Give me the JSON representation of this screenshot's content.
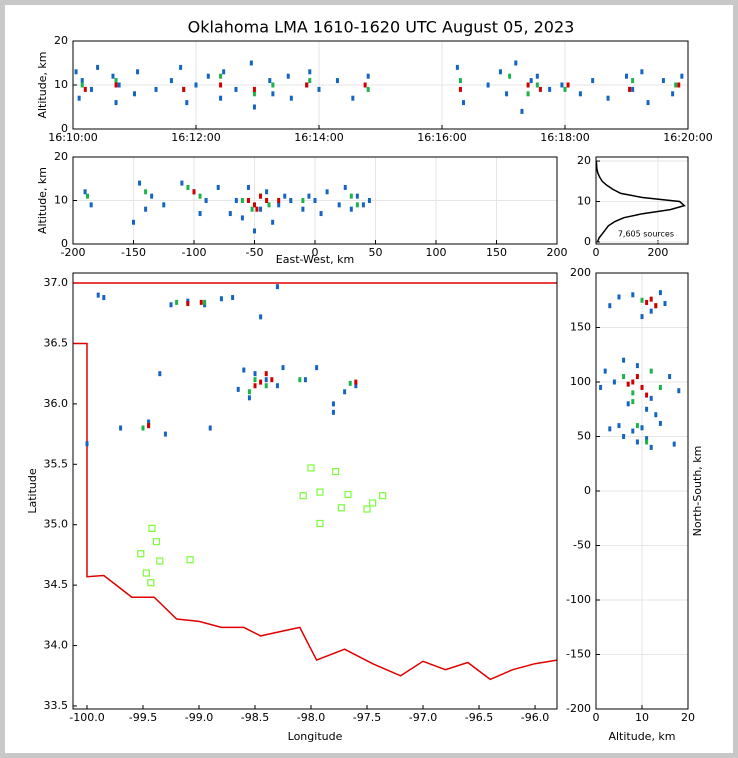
{
  "title": "Oklahoma LMA 1610-1620 UTC August 05, 2023",
  "chart_data": [
    {
      "type": "scatter",
      "ylabel": "Altitude, km",
      "grid": true,
      "xlim": [
        10,
        20
      ],
      "xticks": [
        {
          "value": 10,
          "label": "16:10:00"
        },
        {
          "value": 12,
          "label": "16:12:00"
        },
        {
          "value": 14,
          "label": "16:14:00"
        },
        {
          "value": 16,
          "label": "16:16:00"
        },
        {
          "value": 18,
          "label": "16:18:00"
        },
        {
          "value": 20,
          "label": "16:20:00"
        }
      ],
      "ylim": [
        0,
        20
      ],
      "yticks": [
        0,
        10,
        20
      ],
      "series": [
        {
          "color": "#1565c0",
          "x": [
            10.05,
            10.1,
            10.15,
            10.3,
            10.4,
            10.65,
            10.7,
            10.75,
            11.0,
            11.05,
            11.35,
            11.6,
            11.75,
            11.85,
            12.0,
            12.2,
            12.4,
            12.45,
            12.65,
            12.9,
            12.95,
            13.2,
            13.25,
            13.5,
            13.55,
            13.8,
            13.85,
            14.0,
            14.3,
            14.55,
            14.8,
            16.25,
            16.35,
            16.75,
            16.95,
            17.05,
            17.2,
            17.3,
            17.45,
            17.55,
            17.75,
            17.95,
            18.25,
            18.45,
            18.7,
            19.0,
            19.1,
            19.25,
            19.35,
            19.6,
            19.75,
            19.9
          ],
          "y": [
            13,
            7,
            11,
            9,
            14,
            12,
            6,
            10,
            8,
            13,
            9,
            11,
            14,
            6,
            10,
            12,
            7,
            13,
            9,
            15,
            5,
            11,
            8,
            12,
            7,
            10,
            13,
            9,
            11,
            7,
            12,
            14,
            6,
            10,
            13,
            8,
            15,
            4,
            11,
            12,
            9,
            10,
            8,
            11,
            7,
            12,
            9,
            13,
            6,
            11,
            8,
            12
          ]
        },
        {
          "color": "#1bb34a",
          "x": [
            10.15,
            10.7,
            11.8,
            12.4,
            12.95,
            13.25,
            13.85,
            14.8,
            16.3,
            17.1,
            17.4,
            17.55,
            18.0,
            19.1,
            19.8
          ],
          "y": [
            10,
            11,
            9,
            12,
            8,
            10,
            11,
            9,
            11,
            12,
            8,
            10,
            9,
            11,
            10
          ]
        },
        {
          "color": "#d00000",
          "x": [
            10.2,
            10.7,
            11.8,
            12.4,
            12.95,
            13.8,
            14.75,
            16.3,
            17.4,
            17.6,
            18.05,
            19.05,
            19.85
          ],
          "y": [
            9,
            10,
            9,
            10,
            9,
            10,
            10,
            9,
            10,
            9,
            10,
            9,
            10
          ]
        }
      ]
    },
    {
      "type": "scatter",
      "xlabel": "East-West, km",
      "ylabel": "Altitude, km",
      "grid": true,
      "xlim": [
        -200,
        200
      ],
      "xticks": [
        -200,
        -150,
        -100,
        -50,
        0,
        50,
        100,
        150,
        200
      ],
      "ylim": [
        0,
        20
      ],
      "yticks": [
        0,
        10,
        20
      ],
      "series": [
        {
          "color": "#1565c0",
          "x": [
            -190,
            -185,
            -145,
            -140,
            -135,
            -125,
            -110,
            -100,
            -95,
            -90,
            -80,
            -65,
            -60,
            -55,
            -50,
            -45,
            -40,
            -35,
            -30,
            -20,
            -10,
            -5,
            0,
            5,
            10,
            20,
            25,
            30,
            35,
            40,
            45,
            -150,
            -70,
            -25
          ],
          "y": [
            12,
            9,
            14,
            8,
            11,
            9,
            14,
            12,
            7,
            10,
            13,
            10,
            6,
            13,
            3,
            8,
            12,
            5,
            9,
            10,
            8,
            11,
            10,
            7,
            12,
            9,
            13,
            8,
            11,
            9,
            10,
            5,
            7,
            11
          ]
        },
        {
          "color": "#1bb34a",
          "x": [
            -188,
            -140,
            -105,
            -95,
            -60,
            -52,
            -45,
            -38,
            -10,
            30,
            35
          ],
          "y": [
            11,
            12,
            13,
            11,
            10,
            8,
            11,
            9,
            10,
            11,
            9
          ]
        },
        {
          "color": "#d00000",
          "x": [
            -55,
            -50,
            -45,
            -40,
            -100,
            -30,
            -48
          ],
          "y": [
            10,
            9,
            11,
            10,
            12,
            10,
            8
          ]
        }
      ]
    },
    {
      "type": "line",
      "grid": true,
      "annotation": "7,605 sources",
      "xlim": [
        0,
        297
      ],
      "xticks": [
        0,
        200
      ],
      "ylim": [
        -0.5,
        21
      ],
      "yticks": [
        0,
        10,
        20
      ],
      "series": [
        {
          "color": "#000000",
          "x": [
            5,
            10,
            20,
            30,
            40,
            60,
            90,
            150,
            240,
            285,
            270,
            150,
            80,
            55,
            35,
            20,
            12,
            6,
            3,
            2,
            1
          ],
          "y": [
            0,
            1,
            2,
            3,
            4,
            5,
            6,
            7,
            8,
            9,
            10,
            11,
            12,
            13,
            14,
            15,
            16,
            17,
            18,
            19,
            20
          ]
        }
      ]
    },
    {
      "type": "map",
      "xlabel": "Longitude",
      "ylabel": "Latitude",
      "grid": false,
      "xlim": [
        -100.125,
        -95.804
      ],
      "xticks": [
        {
          "value": -100,
          "label": "-100.0"
        },
        -99.5,
        {
          "value": -99,
          "label": "-99.0"
        },
        -98.5,
        {
          "value": -98,
          "label": "-98.0"
        },
        -97.5,
        {
          "value": -97,
          "label": "-97.0"
        },
        -96.5,
        {
          "value": -96,
          "label": "-96.0"
        }
      ],
      "ylim": [
        33.475,
        37.083
      ],
      "yticks": [
        33.5,
        {
          "value": 34,
          "label": "34.0"
        },
        34.5,
        {
          "value": 35,
          "label": "35.0"
        },
        35.5,
        {
          "value": 36,
          "label": "36.0"
        },
        36.5,
        {
          "value": 37,
          "label": "37.0"
        }
      ],
      "boundary": {
        "color": "#e00000",
        "x": [
          -100.125,
          -95.804,
          null,
          -100.125,
          -100.0,
          -100.0,
          -99.85,
          -99.6,
          -99.4,
          -99.2,
          -99.0,
          -98.8,
          -98.6,
          -98.45,
          -98.1,
          -97.95,
          -97.7,
          -97.45,
          -97.2,
          -97.0,
          -96.8,
          -96.6,
          -96.4,
          -96.2,
          -96.0,
          -95.804
        ],
        "y": [
          37.0,
          37.0,
          null,
          36.5,
          36.5,
          34.57,
          34.58,
          34.4,
          34.4,
          34.22,
          34.2,
          34.15,
          34.15,
          34.08,
          34.15,
          33.88,
          33.97,
          33.85,
          33.75,
          33.87,
          33.8,
          33.86,
          33.72,
          33.8,
          33.85,
          33.88
        ]
      },
      "stations": {
        "color": "#7cfc3c",
        "x": [
          -98.0,
          -97.78,
          -98.07,
          -97.92,
          -97.67,
          -97.36,
          -97.45,
          -97.73,
          -97.5,
          -97.92,
          -99.42,
          -99.38,
          -99.52,
          -99.35,
          -99.08,
          -99.47,
          -99.43
        ],
        "y": [
          35.47,
          35.44,
          35.24,
          35.27,
          35.25,
          35.24,
          35.18,
          35.14,
          35.13,
          35.01,
          34.97,
          34.86,
          34.76,
          34.7,
          34.71,
          34.6,
          34.52
        ]
      },
      "series": [
        {
          "color": "#1565c0",
          "x": [
            -99.9,
            -99.85,
            -99.25,
            -99.1,
            -98.95,
            -98.8,
            -98.7,
            -98.3,
            -99.35,
            -98.6,
            -98.5,
            -98.4,
            -98.3,
            -98.55,
            -98.65,
            -98.05,
            -97.95,
            -97.7,
            -97.6,
            -97.8,
            -99.45,
            -99.7,
            -99.3,
            -100.0,
            -98.45,
            -97.8,
            -98.9,
            -98.25
          ],
          "y": [
            36.9,
            36.88,
            36.82,
            36.85,
            36.82,
            36.87,
            36.88,
            36.97,
            36.25,
            36.28,
            36.25,
            36.2,
            36.15,
            36.05,
            36.12,
            36.2,
            36.3,
            36.1,
            36.15,
            35.93,
            35.85,
            35.8,
            35.75,
            35.67,
            36.72,
            36.0,
            35.8,
            36.3
          ]
        },
        {
          "color": "#1bb34a",
          "x": [
            -99.2,
            -98.95,
            -98.5,
            -98.4,
            -98.55,
            -97.65,
            -99.45,
            -99.5,
            -98.1
          ],
          "y": [
            36.84,
            36.84,
            36.2,
            36.15,
            36.1,
            36.17,
            35.82,
            35.8,
            36.2
          ]
        },
        {
          "color": "#d00000",
          "x": [
            -99.1,
            -98.98,
            -98.45,
            -98.35,
            -98.5,
            -99.45,
            -97.6,
            -98.4
          ],
          "y": [
            36.83,
            36.84,
            36.18,
            36.2,
            36.15,
            35.82,
            36.18,
            36.25
          ]
        }
      ]
    },
    {
      "type": "scatter",
      "xlabel": "Altitude, km",
      "ylabel": "North-South, km",
      "ylabel_side": "right",
      "grid": true,
      "xlim": [
        0,
        20
      ],
      "xticks": [
        0,
        10,
        20
      ],
      "ylim": [
        -200,
        200
      ],
      "yticks": [
        -200,
        -150,
        -100,
        -50,
        0,
        50,
        100,
        150,
        200
      ],
      "series": [
        {
          "color": "#1565c0",
          "x": [
            3,
            5,
            8,
            12,
            15,
            10,
            14,
            4,
            1,
            2,
            6,
            9,
            12,
            16,
            18,
            7,
            11,
            13,
            5,
            8,
            10,
            14,
            3,
            9,
            12,
            17,
            6,
            11
          ],
          "y": [
            170,
            178,
            180,
            165,
            172,
            160,
            182,
            100,
            95,
            110,
            120,
            115,
            85,
            105,
            92,
            80,
            75,
            70,
            60,
            55,
            58,
            62,
            57,
            45,
            40,
            43,
            50,
            48
          ]
        },
        {
          "color": "#1bb34a",
          "x": [
            10,
            13,
            6,
            8,
            12,
            14,
            9,
            11,
            8
          ],
          "y": [
            175,
            170,
            105,
            90,
            110,
            95,
            60,
            45,
            82
          ]
        },
        {
          "color": "#d00000",
          "x": [
            11,
            13,
            12,
            8,
            10,
            9,
            11,
            7
          ],
          "y": [
            173,
            170,
            176,
            100,
            95,
            105,
            88,
            98
          ]
        }
      ]
    }
  ]
}
